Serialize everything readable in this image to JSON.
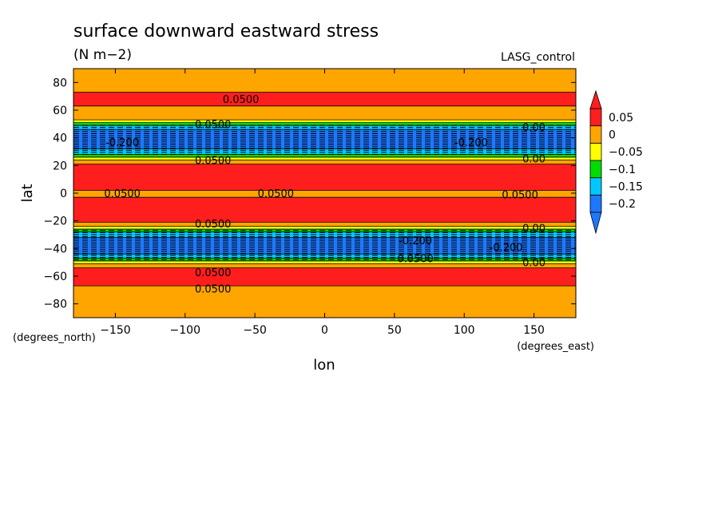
{
  "chart_data": {
    "type": "heatmap",
    "title": "surface downward eastward stress",
    "units": "(N m−2)",
    "dataset": "LASG_control",
    "xlabel": "lon",
    "ylabel": "lat",
    "x_unit": "(degrees_east)",
    "y_unit": "(degrees_north)",
    "xlim": [
      -180,
      180
    ],
    "ylim": [
      -90,
      90
    ],
    "x_ticks": [
      -150,
      -100,
      -50,
      0,
      50,
      100,
      150
    ],
    "y_ticks": [
      -80,
      -60,
      -40,
      -20,
      0,
      20,
      40,
      60,
      80
    ],
    "x_tick_labels": [
      "−150",
      "−100",
      "−50",
      "0",
      "50",
      "100",
      "150"
    ],
    "y_tick_labels": [
      "−80",
      "−60",
      "−40",
      "−20",
      "0",
      "20",
      "40",
      "60",
      "80"
    ],
    "colorbar": {
      "levels": [
        -0.25,
        -0.2,
        -0.15,
        -0.1,
        -0.05,
        0,
        0.05,
        0.1
      ],
      "colors": [
        "#1e78ff",
        "#00c8ff",
        "#00dc00",
        "#ffff00",
        "#ffa500",
        "#ff1e1e"
      ],
      "tick_values": [
        -0.2,
        -0.15,
        -0.1,
        -0.05,
        0,
        0.05
      ],
      "tick_labels": [
        "−0.2",
        "−0.15",
        "−0.1",
        "−0.05",
        "0",
        "0.05"
      ],
      "extend": "both"
    },
    "zonal_bands": [
      {
        "lat_min": 73,
        "lat_max": 90,
        "level": "0 to 0.05"
      },
      {
        "lat_min": 63,
        "lat_max": 73,
        "level": "> 0.05"
      },
      {
        "lat_min": 53,
        "lat_max": 63,
        "level": "0 to 0.05"
      },
      {
        "lat_min": 51,
        "lat_max": 53,
        "level": "-0.05 to 0"
      },
      {
        "lat_min": 49,
        "lat_max": 51,
        "level": "-0.1 to -0.05"
      },
      {
        "lat_min": 46,
        "lat_max": 49,
        "level": "-0.15 to -0.1"
      },
      {
        "lat_min": 32,
        "lat_max": 46,
        "level": "< -0.2"
      },
      {
        "lat_min": 28,
        "lat_max": 32,
        "level": "-0.15 to -0.1"
      },
      {
        "lat_min": 26,
        "lat_max": 28,
        "level": "-0.1 to -0.05"
      },
      {
        "lat_min": 24,
        "lat_max": 26,
        "level": "-0.05 to 0"
      },
      {
        "lat_min": 21,
        "lat_max": 24,
        "level": "0 to 0.05"
      },
      {
        "lat_min": 2,
        "lat_max": 21,
        "level": "> 0.05"
      },
      {
        "lat_min": -3,
        "lat_max": 2,
        "level": "0 to 0.05"
      },
      {
        "lat_min": -21,
        "lat_max": -3,
        "level": "> 0.05"
      },
      {
        "lat_min": -24,
        "lat_max": -21,
        "level": "0 to 0.05"
      },
      {
        "lat_min": -26,
        "lat_max": -24,
        "level": "-0.05 to 0"
      },
      {
        "lat_min": -28,
        "lat_max": -26,
        "level": "-0.1 to -0.05"
      },
      {
        "lat_min": -32,
        "lat_max": -28,
        "level": "-0.15 to -0.1"
      },
      {
        "lat_min": -44,
        "lat_max": -32,
        "level": "< -0.2"
      },
      {
        "lat_min": -47,
        "lat_max": -44,
        "level": "-0.15 to -0.1"
      },
      {
        "lat_min": -49,
        "lat_max": -47,
        "level": "-0.1 to -0.05"
      },
      {
        "lat_min": -51,
        "lat_max": -49,
        "level": "-0.05 to 0"
      },
      {
        "lat_min": -54,
        "lat_max": -51,
        "level": "0 to 0.05"
      },
      {
        "lat_min": -67,
        "lat_max": -54,
        "level": "> 0.05"
      },
      {
        "lat_min": -90,
        "lat_max": -67,
        "level": "0 to 0.05"
      }
    ],
    "contour_labels": [
      {
        "text": "0.0500",
        "lon": -60,
        "lat": 68
      },
      {
        "text": "0.0500",
        "lon": -80,
        "lat": 50
      },
      {
        "text": "0.00",
        "lon": 150,
        "lat": 48
      },
      {
        "text": "-0.200",
        "lon": -145,
        "lat": 37
      },
      {
        "text": "-0.200",
        "lon": 105,
        "lat": 37
      },
      {
        "text": "0.0500",
        "lon": -80,
        "lat": 24
      },
      {
        "text": "0.00",
        "lon": 150,
        "lat": 25
      },
      {
        "text": "0.0500",
        "lon": -145,
        "lat": 0
      },
      {
        "text": "0.0500",
        "lon": -35,
        "lat": 0
      },
      {
        "text": "0.0500",
        "lon": 140,
        "lat": -1
      },
      {
        "text": "0.0500",
        "lon": -80,
        "lat": -22
      },
      {
        "text": "0.00",
        "lon": 150,
        "lat": -25
      },
      {
        "text": "-0.200",
        "lon": 65,
        "lat": -34
      },
      {
        "text": "-0.200",
        "lon": 130,
        "lat": -39
      },
      {
        "text": "0.0500",
        "lon": 65,
        "lat": -47
      },
      {
        "text": "0.00",
        "lon": 150,
        "lat": -50
      },
      {
        "text": "0.0500",
        "lon": -80,
        "lat": -57
      },
      {
        "text": "0.0500",
        "lon": -80,
        "lat": -69
      }
    ]
  }
}
